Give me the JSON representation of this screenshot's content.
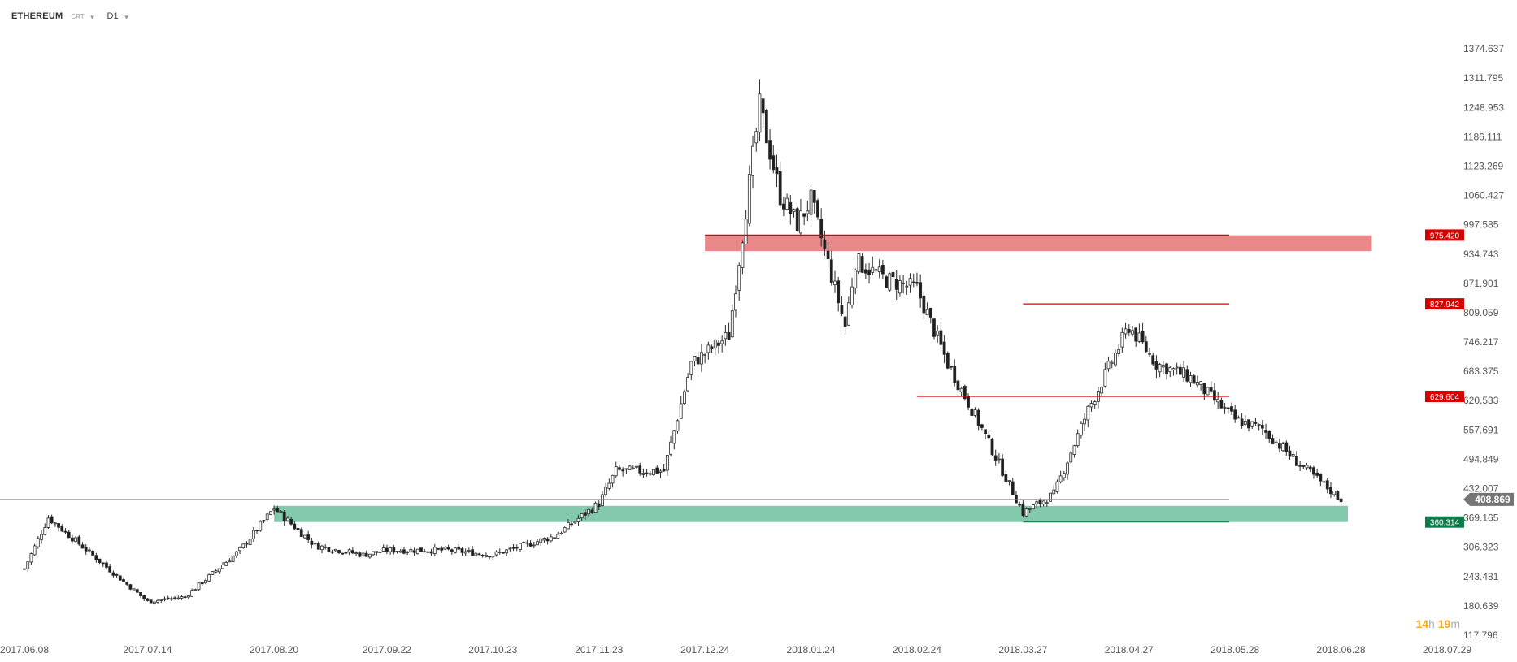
{
  "header": {
    "symbol": "ETHEREUM",
    "asset_class": "CRT",
    "interval": "D1"
  },
  "countdown": {
    "hours": "14",
    "hours_unit": "h",
    "minutes": "19",
    "minutes_unit": "m"
  },
  "colors": {
    "resistance_zone": "#e57373",
    "support_zone": "#6dbf9c",
    "red_label": "#d50000",
    "green_label": "#0f7a4a",
    "current_price_label": "#757575",
    "candle_up": "#ffffff",
    "candle_down": "#1f1f1f"
  },
  "chart_data": {
    "type": "candlestick",
    "title": "",
    "xlabel": "",
    "ylabel": "",
    "ylim": [
      117.796,
      1437.479
    ],
    "x_tick_labels": [
      "2017.06.08",
      "2017.07.14",
      "2017.08.20",
      "2017.09.22",
      "2017.10.23",
      "2017.11.23",
      "2017.12.24",
      "2018.01.24",
      "2018.02.24",
      "2018.03.27",
      "2018.04.27",
      "2018.05.28",
      "2018.06.28",
      "2018.07.29"
    ],
    "y_tick_labels": [
      "1374.637",
      "1311.795",
      "1248.953",
      "1186.111",
      "1123.269",
      "1060.427",
      "997.585",
      "934.743",
      "871.901",
      "809.059",
      "746.217",
      "683.375",
      "620.533",
      "557.691",
      "494.849",
      "432.007",
      "369.165",
      "306.323",
      "243.481",
      "180.639",
      "117.796"
    ],
    "current_price": "408.869",
    "levels": [
      {
        "label": "975.420",
        "value": 975.42,
        "color": "red",
        "start_date": "2017.12.24"
      },
      {
        "label": "827.942",
        "value": 827.942,
        "color": "red",
        "start_date": "2018.03.27"
      },
      {
        "label": "629.604",
        "value": 629.604,
        "color": "red",
        "start_date": "2018.02.24"
      },
      {
        "label": "360.314",
        "value": 360.314,
        "color": "green",
        "start_date": "2018.03.27"
      }
    ],
    "zones": [
      {
        "type": "resistance",
        "from_date": "2017.12.24",
        "to_date": "2018.07.07",
        "low": 941,
        "high": 975
      },
      {
        "type": "support",
        "from_date": "2017.08.20",
        "to_date": "2018.06.30",
        "low": 360.314,
        "high": 395
      }
    ],
    "series_anchors": {
      "dates": [
        "2017.06.08",
        "2017.06.15",
        "2017.07.01",
        "2017.07.14",
        "2017.07.25",
        "2017.08.10",
        "2017.08.20",
        "2017.09.01",
        "2017.09.15",
        "2017.09.22",
        "2017.10.10",
        "2017.10.23",
        "2017.11.10",
        "2017.11.23",
        "2017.11.28",
        "2017.12.05",
        "2017.12.12",
        "2017.12.20",
        "2017.12.31",
        "2018.01.09",
        "2018.01.15",
        "2018.01.20",
        "2018.01.24",
        "2018.02.03",
        "2018.02.06",
        "2018.02.15",
        "2018.02.24",
        "2018.03.05",
        "2018.03.15",
        "2018.03.27",
        "2018.04.05",
        "2018.04.15",
        "2018.04.27",
        "2018.05.05",
        "2018.05.15",
        "2018.05.28",
        "2018.06.05",
        "2018.06.15",
        "2018.06.28"
      ],
      "close": [
        260,
        370,
        270,
        190,
        200,
        300,
        390,
        310,
        290,
        300,
        300,
        290,
        330,
        400,
        470,
        470,
        470,
        700,
        760,
        1250,
        1060,
        1000,
        1050,
        780,
        920,
        880,
        860,
        700,
        560,
        380,
        420,
        600,
        780,
        700,
        670,
        580,
        560,
        490,
        408.869
      ]
    }
  }
}
